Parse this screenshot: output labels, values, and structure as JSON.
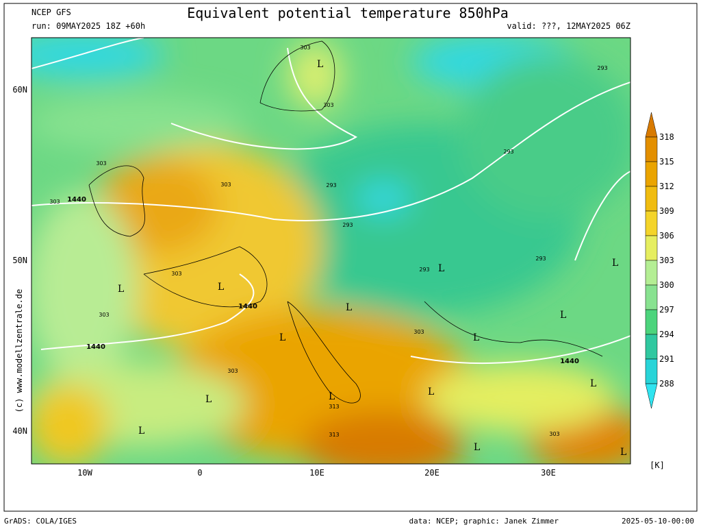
{
  "header": {
    "model": "NCEP GFS",
    "title": "Equivalent potential temperature 850hPa",
    "run": "run: 09MAY2025 18Z +60h",
    "valid": "valid: ???, 12MAY2025 06Z"
  },
  "side_credit": "(c) www.modellzentrale.de",
  "lat_labels": [
    "60N",
    "50N",
    "40N"
  ],
  "lon_labels": [
    "10W",
    "0",
    "10E",
    "20E",
    "30E"
  ],
  "colorbar": {
    "unit": "[K]",
    "levels": [
      318,
      315,
      312,
      309,
      306,
      303,
      300,
      297,
      294,
      291,
      288
    ],
    "colors": [
      "#d87a00",
      "#e38f00",
      "#eaa400",
      "#f0bc10",
      "#f4d42a",
      "#e6ee60",
      "#b4ee94",
      "#88e290",
      "#4cd47c",
      "#30c8a0",
      "#28d4d8",
      "#30e4f0"
    ]
  },
  "contour_labels": [
    "303",
    "303",
    "303",
    "303",
    "303",
    "303",
    "303",
    "303",
    "303",
    "303",
    "293",
    "293",
    "293",
    "293",
    "293",
    "293",
    "313",
    "313",
    "1440",
    "1440",
    "1440",
    "1440"
  ],
  "lows": [
    "L",
    "L",
    "L",
    "L",
    "L",
    "L",
    "L",
    "L",
    "L",
    "L",
    "L",
    "L",
    "L",
    "L",
    "L",
    "L"
  ],
  "footer": {
    "left": "GrADS: COLA/IGES",
    "center": "data: NCEP; graphic: Janek Zimmer",
    "right": "2025-05-10-00:00"
  }
}
